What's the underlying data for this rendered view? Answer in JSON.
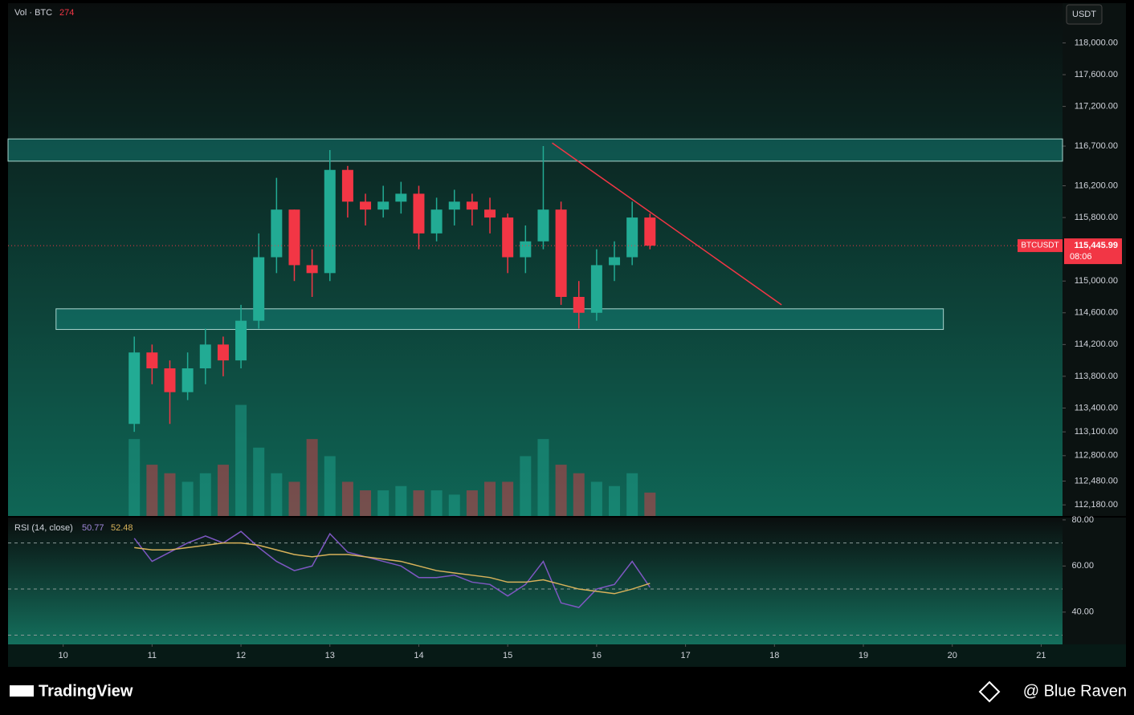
{
  "chart_data": {
    "type": "candlestick",
    "volume_label": "Vol · BTC",
    "currency": "USDT",
    "symbol_label": "BTCUSDT",
    "price_label": {
      "value": 115445.99,
      "label": "115,445.99"
    },
    "countdown": "08:06",
    "up_color": "#22ab94",
    "down_color": "#f23645",
    "x": [
      10.8,
      11.0,
      11.2,
      11.4,
      11.6,
      11.8,
      12.0,
      12.2,
      12.4,
      12.6,
      12.8,
      13.0,
      13.2,
      13.4,
      13.6,
      13.8,
      14.0,
      14.2,
      14.4,
      14.6,
      14.8,
      15.0,
      15.2,
      15.4,
      15.6,
      15.8,
      16.0,
      16.2,
      16.4,
      16.6
    ],
    "open": [
      113200,
      114100,
      113900,
      113600,
      113900,
      114200,
      114000,
      114500,
      115300,
      115900,
      115200,
      115100,
      116400,
      116000,
      115900,
      116000,
      116100,
      115600,
      115900,
      116000,
      115900,
      115800,
      115300,
      115500,
      115900,
      114800,
      114600,
      115200,
      115300,
      115800
    ],
    "high": [
      114300,
      114200,
      114000,
      114100,
      114400,
      114300,
      114700,
      115600,
      116300,
      115900,
      115400,
      116650,
      116450,
      116100,
      116200,
      116250,
      116200,
      116050,
      116150,
      116100,
      116050,
      115850,
      115700,
      116700,
      116000,
      115000,
      115400,
      115500,
      116000,
      115850
    ],
    "low": [
      113100,
      113700,
      113200,
      113500,
      113700,
      113800,
      113900,
      114400,
      115100,
      115000,
      114800,
      115000,
      115800,
      115700,
      115800,
      115850,
      115400,
      115500,
      115700,
      115700,
      115600,
      115100,
      115100,
      115400,
      114700,
      114400,
      114500,
      115000,
      115200,
      115400
    ],
    "close": [
      114100,
      113900,
      113600,
      113900,
      114200,
      114000,
      114500,
      115300,
      115900,
      115200,
      115100,
      116400,
      116000,
      115900,
      116000,
      116100,
      115600,
      115900,
      116000,
      115900,
      115800,
      115300,
      115500,
      115900,
      114800,
      114600,
      115200,
      115300,
      115800,
      115445.99
    ],
    "xlim": [
      9.38,
      21.24
    ],
    "xticks": [
      10,
      11,
      12,
      13,
      14,
      15,
      16,
      17,
      18,
      19,
      20,
      21
    ],
    "ylim": [
      112040,
      118500
    ],
    "yticks": [
      {
        "value": 118000,
        "label": "118,000.00"
      },
      {
        "value": 117600,
        "label": "117,600.00"
      },
      {
        "value": 117200,
        "label": "117,200.00"
      },
      {
        "value": 116700,
        "label": "116,700.00"
      },
      {
        "value": 116200,
        "label": "116,200.00"
      },
      {
        "value": 115800,
        "label": "115,800.00"
      },
      {
        "value": 115000,
        "label": "115,000.00"
      },
      {
        "value": 114600,
        "label": "114,600.00"
      },
      {
        "value": 114200,
        "label": "114,200.00"
      },
      {
        "value": 113800,
        "label": "113,800.00"
      },
      {
        "value": 113400,
        "label": "113,400.00"
      },
      {
        "value": 113100,
        "label": "113,100.00"
      },
      {
        "value": 112800,
        "label": "112,800.00"
      },
      {
        "value": 112480,
        "label": "112,480.00"
      },
      {
        "value": 112180,
        "label": "112,180.00"
      }
    ],
    "zones": [
      {
        "top": 116790,
        "bottom": 116510,
        "x": [
          9.38,
          21.24
        ]
      },
      {
        "top": 114650,
        "bottom": 114390,
        "x": [
          9.92,
          19.9
        ]
      }
    ],
    "trendline": {
      "x": [
        15.5,
        18.08
      ],
      "y": [
        116740,
        114700
      ],
      "color": "#f23645"
    },
    "volume": {
      "ylim": [
        0,
        6000
      ],
      "values": [
        900,
        600,
        500,
        400,
        500,
        600,
        1300,
        800,
        500,
        400,
        900,
        700,
        400,
        300,
        300,
        350,
        300,
        300,
        250,
        300,
        400,
        400,
        700,
        900,
        600,
        500,
        400,
        350,
        500,
        274
      ]
    },
    "rsi": {
      "title": "RSI (14, close)",
      "color": "#7e57c2",
      "ma_color": "#d8b25a",
      "ylim": [
        26,
        81
      ],
      "yticks": [
        {
          "value": 80,
          "label": "80.00"
        },
        {
          "value": 60,
          "label": "60.00"
        },
        {
          "value": 40,
          "label": "40.00"
        }
      ],
      "levels": [
        30,
        50,
        70
      ],
      "values": [
        72,
        62,
        66,
        70,
        73,
        70,
        75,
        68,
        62,
        58,
        60,
        74,
        66,
        64,
        62,
        60,
        55,
        55,
        56,
        53,
        52,
        47,
        52,
        62,
        44,
        42,
        50,
        52,
        62,
        50.77
      ],
      "ma": [
        68,
        67,
        67,
        68,
        69,
        70,
        70,
        69,
        67,
        65,
        64,
        65,
        65,
        64,
        63,
        62,
        60,
        58,
        57,
        56,
        55,
        53,
        53,
        54,
        52,
        50,
        49,
        48,
        50,
        52.48
      ]
    },
    "branding": "TradingView",
    "credit": "@ Blue Raven"
  }
}
